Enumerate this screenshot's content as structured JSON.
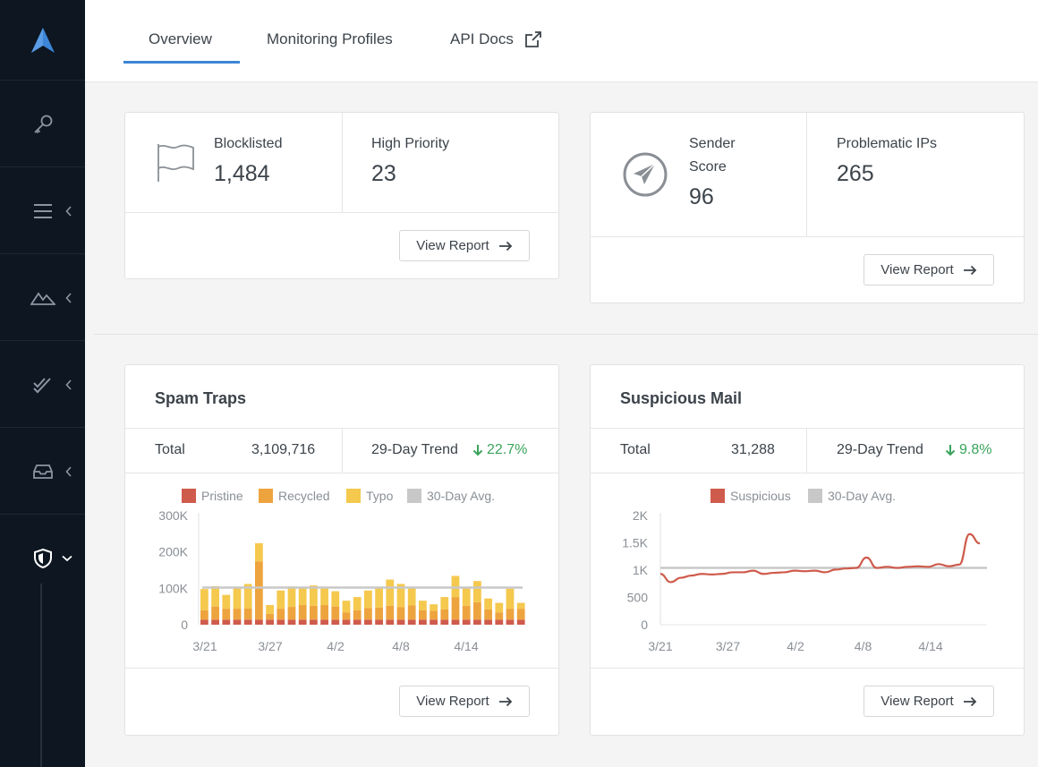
{
  "sidebar": {
    "icons": [
      "logo-icon",
      "key-icon",
      "menu-icon",
      "mountain-icon",
      "double-check-icon",
      "inbox-icon",
      "shield-icon"
    ]
  },
  "nav": {
    "tabs": [
      {
        "label": "Overview",
        "active": true
      },
      {
        "label": "Monitoring Profiles",
        "active": false
      },
      {
        "label": "API Docs",
        "active": false
      }
    ]
  },
  "blocklist_card": {
    "blocklisted_label": "Blocklisted",
    "blocklisted_value": "1,484",
    "high_priority_label": "High Priority",
    "high_priority_value": "23",
    "button_label": "View Report"
  },
  "sender_card": {
    "sender_score_label": "Sender Score",
    "sender_score_value": "96",
    "problematic_label": "Problematic IPs",
    "problematic_value": "265",
    "button_label": "View Report"
  },
  "spam_traps": {
    "title": "Spam Traps",
    "total_label": "Total",
    "total_value": "3,109,716",
    "trend_label": "29-Day Trend",
    "trend_value": "22.7%",
    "button_label": "View Report"
  },
  "suspicious_mail": {
    "title": "Suspicious Mail",
    "total_label": "Total",
    "total_value": "31,288",
    "trend_label": "29-Day Trend",
    "trend_value": "9.8%",
    "button_label": "View Report"
  },
  "colors": {
    "pristine": "#cf5b4c",
    "recycled": "#eea43e",
    "typo": "#f5c94e",
    "avg": "#c8c8c8",
    "suspicious": "#cf5b4c",
    "trend": "#3aa35c",
    "accent": "#3d85d6"
  },
  "chart_data": [
    {
      "type": "bar",
      "stacked": true,
      "legend": [
        "Pristine",
        "Recycled",
        "Typo",
        "30-Day Avg."
      ],
      "x_ticks": [
        "3/21",
        "3/27",
        "4/2",
        "4/8",
        "4/14"
      ],
      "y_ticks": [
        "300K",
        "200K",
        "100K",
        "0"
      ],
      "ylim": [
        0,
        300000
      ],
      "avg": 102000,
      "series": [
        {
          "name": "Pristine",
          "values": [
            14000,
            14000,
            14000,
            14000,
            14000,
            14000,
            14000,
            14000,
            14000,
            14000,
            14000,
            14000,
            14000,
            14000,
            14000,
            14000,
            14000,
            14000,
            14000,
            14000,
            14000,
            14000,
            14000,
            14000,
            14000,
            14000,
            14000,
            14000,
            14000,
            14000
          ]
        },
        {
          "name": "Recycled",
          "values": [
            26000,
            36000,
            30000,
            30000,
            31000,
            160000,
            16000,
            30000,
            35000,
            40000,
            38000,
            40000,
            36000,
            20000,
            26000,
            32000,
            33000,
            38000,
            34000,
            39000,
            26000,
            24000,
            28000,
            62000,
            38000,
            48000,
            28000,
            20000,
            30000,
            30000
          ]
        },
        {
          "name": "Typo",
          "values": [
            58000,
            56000,
            38000,
            56000,
            67000,
            50000,
            24000,
            50000,
            56000,
            50000,
            56000,
            46000,
            42000,
            32000,
            36000,
            48000,
            54000,
            72000,
            64000,
            47000,
            26000,
            18000,
            34000,
            58000,
            52000,
            58000,
            30000,
            26000,
            55000,
            16000
          ]
        }
      ]
    },
    {
      "type": "line",
      "legend": [
        "Suspicious",
        "30-Day Avg."
      ],
      "x_ticks": [
        "3/21",
        "3/27",
        "4/2",
        "4/8",
        "4/14"
      ],
      "y_ticks": [
        "2K",
        "1.5K",
        "1K",
        "500",
        "0"
      ],
      "ylim": [
        0,
        2000
      ],
      "avg": 1040,
      "series": [
        {
          "name": "Suspicious",
          "values": [
            930,
            780,
            860,
            900,
            930,
            920,
            930,
            960,
            960,
            990,
            930,
            950,
            960,
            990,
            980,
            990,
            960,
            1010,
            1030,
            1040,
            1230,
            1040,
            1060,
            1040,
            1060,
            1070,
            1060,
            1110,
            1070,
            1100,
            1660,
            1490
          ]
        }
      ]
    }
  ]
}
